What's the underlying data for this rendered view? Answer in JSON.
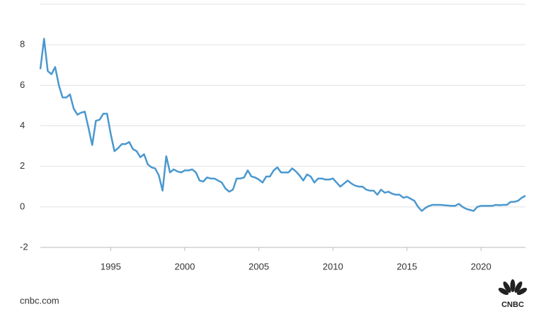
{
  "chart_data": {
    "type": "line",
    "x": [
      1990.25,
      1990.5,
      1990.75,
      1991,
      1991.25,
      1991.5,
      1991.75,
      1992,
      1992.25,
      1992.5,
      1992.75,
      1993,
      1993.25,
      1993.5,
      1993.75,
      1994,
      1994.25,
      1994.5,
      1994.75,
      1995,
      1995.25,
      1995.5,
      1995.75,
      1996,
      1996.25,
      1996.5,
      1996.75,
      1997,
      1997.25,
      1997.5,
      1997.75,
      1998,
      1998.25,
      1998.5,
      1998.75,
      1999,
      1999.25,
      1999.5,
      1999.75,
      2000,
      2000.25,
      2000.5,
      2000.75,
      2001,
      2001.25,
      2001.5,
      2001.75,
      2002,
      2002.25,
      2002.5,
      2002.75,
      2003,
      2003.25,
      2003.5,
      2003.75,
      2004,
      2004.25,
      2004.5,
      2004.75,
      2005,
      2005.25,
      2005.5,
      2005.75,
      2006,
      2006.25,
      2006.5,
      2006.75,
      2007,
      2007.25,
      2007.5,
      2007.75,
      2008,
      2008.25,
      2008.5,
      2008.75,
      2009,
      2009.25,
      2009.5,
      2009.75,
      2010,
      2010.25,
      2010.5,
      2010.75,
      2011,
      2011.25,
      2011.5,
      2011.75,
      2012,
      2012.25,
      2012.5,
      2012.75,
      2013,
      2013.25,
      2013.5,
      2013.75,
      2014,
      2014.25,
      2014.5,
      2014.75,
      2015,
      2015.25,
      2015.5,
      2015.75,
      2016,
      2016.25,
      2016.5,
      2016.75,
      2017,
      2017.25,
      2017.5,
      2017.75,
      2018,
      2018.25,
      2018.5,
      2018.75,
      2019,
      2019.25,
      2019.5,
      2019.75,
      2020,
      2020.25,
      2020.5,
      2020.75,
      2021,
      2021.25,
      2021.5,
      2021.75,
      2022,
      2022.25,
      2022.5,
      2022.75,
      2023
    ],
    "series": [
      {
        "color": "#4a98cf",
        "values": [
          6.8,
          8.3,
          6.7,
          6.55,
          6.9,
          6.0,
          5.4,
          5.4,
          5.55,
          4.85,
          4.55,
          4.65,
          4.7,
          3.9,
          3.05,
          4.25,
          4.3,
          4.6,
          4.6,
          3.6,
          2.75,
          2.9,
          3.1,
          3.1,
          3.2,
          2.85,
          2.75,
          2.45,
          2.6,
          2.1,
          1.95,
          1.9,
          1.55,
          0.8,
          2.5,
          1.7,
          1.85,
          1.75,
          1.7,
          1.8,
          1.8,
          1.85,
          1.7,
          1.3,
          1.25,
          1.45,
          1.4,
          1.4,
          1.3,
          1.2,
          0.9,
          0.75,
          0.85,
          1.4,
          1.4,
          1.45,
          1.8,
          1.5,
          1.45,
          1.35,
          1.2,
          1.5,
          1.5,
          1.8,
          1.95,
          1.7,
          1.7,
          1.7,
          1.9,
          1.75,
          1.55,
          1.3,
          1.6,
          1.5,
          1.2,
          1.4,
          1.4,
          1.35,
          1.35,
          1.4,
          1.2,
          1.0,
          1.15,
          1.3,
          1.15,
          1.05,
          1.0,
          1.0,
          0.85,
          0.8,
          0.8,
          0.6,
          0.85,
          0.7,
          0.75,
          0.65,
          0.6,
          0.6,
          0.45,
          0.5,
          0.4,
          0.3,
          0.0,
          -0.2,
          -0.05,
          0.05,
          0.1,
          0.1,
          0.1,
          0.08,
          0.07,
          0.05,
          0.05,
          0.15,
          0.0,
          -0.1,
          -0.15,
          -0.2,
          0.0,
          0.05,
          0.05,
          0.05,
          0.05,
          0.1,
          0.08,
          0.1,
          0.1,
          0.25,
          0.25,
          0.3,
          0.45,
          0.55
        ]
      }
    ],
    "xlim": [
      1990.25,
      2023
    ],
    "xticks": [
      1995,
      2000,
      2005,
      2010,
      2015,
      2020
    ],
    "ylim": [
      -2,
      10
    ],
    "yticks": [
      -2,
      0,
      2,
      4,
      6,
      8
    ],
    "grid": true,
    "source": "cnbc.com",
    "logo": "CNBC"
  }
}
